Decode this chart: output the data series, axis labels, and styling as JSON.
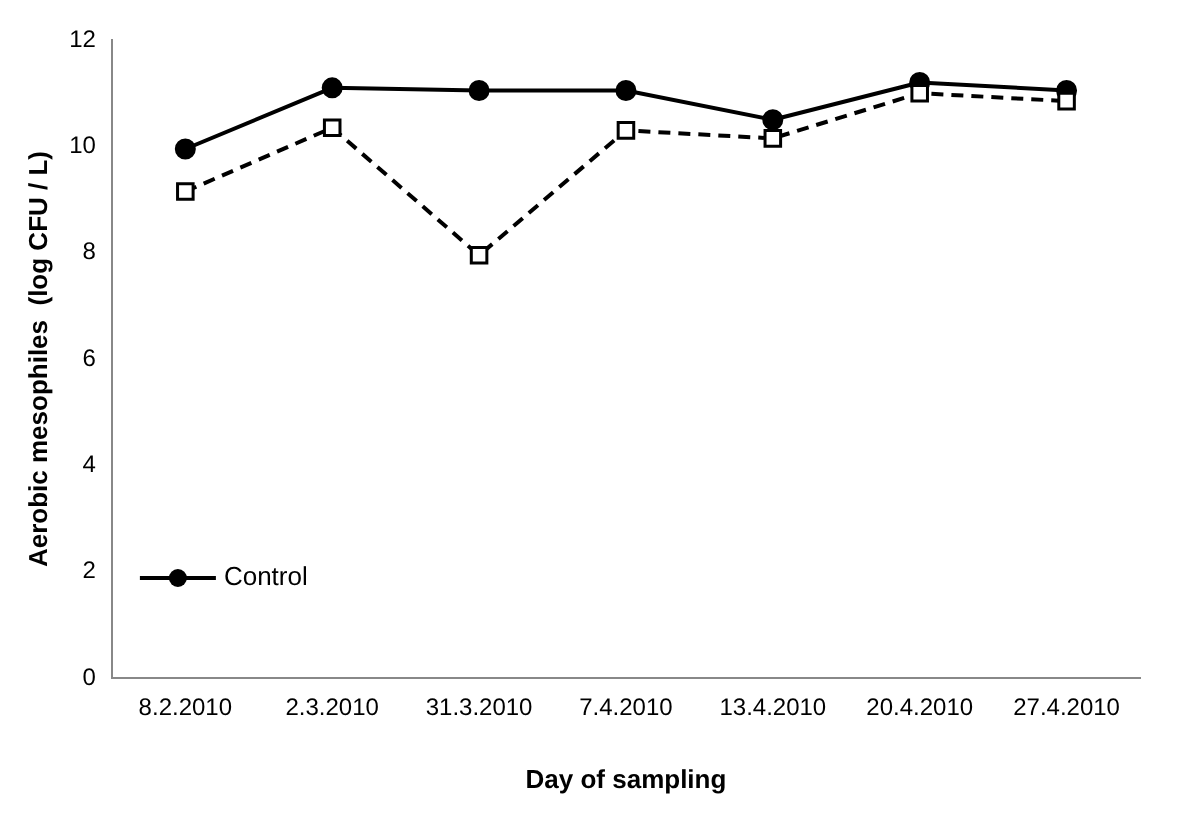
{
  "chart_data": {
    "type": "line",
    "xlabel": "Day of sampling",
    "ylabel": "Aerobic mesophiles  (log CFU / L)",
    "categories": [
      "8.2.2010",
      "2.3.2010",
      "31.3.2010",
      "7.4.2010",
      "13.4.2010",
      "20.4.2010",
      "27.4.2010"
    ],
    "series": [
      {
        "name": "Control",
        "color": "#000000",
        "marker": "circle",
        "line_style": "solid",
        "values": [
          9.95,
          11.1,
          11.05,
          11.05,
          10.5,
          11.2,
          11.05
        ]
      },
      {
        "color": "#000000",
        "marker": "square",
        "line_style": "dashed",
        "values": [
          9.15,
          10.35,
          7.95,
          10.3,
          10.15,
          11.0,
          10.85
        ]
      }
    ],
    "ylim": [
      0,
      12
    ],
    "yticks": [
      0,
      2,
      4,
      6,
      8,
      10,
      12
    ],
    "grid": false,
    "legend": "bottom left"
  }
}
